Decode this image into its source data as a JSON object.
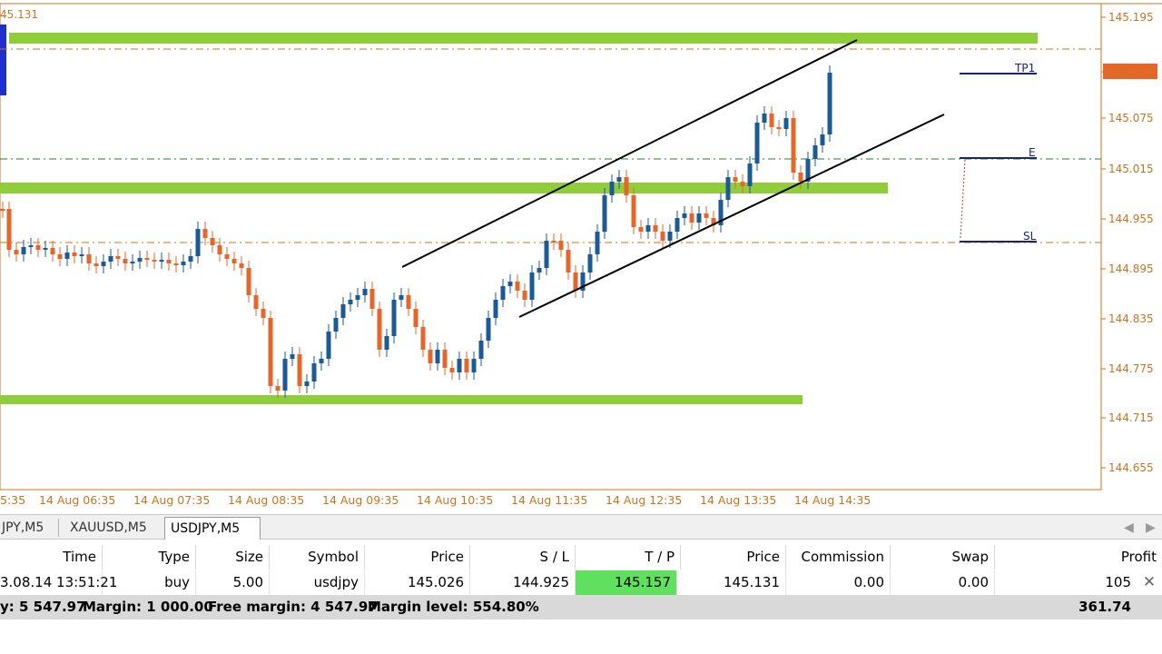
{
  "chart": {
    "current_price_partial": "45.131",
    "price_ticks": [
      "145.195",
      "145.131",
      "145.075",
      "145.015",
      "144.955",
      "144.895",
      "144.835",
      "144.775",
      "144.715",
      "144.655"
    ],
    "time_ticks": [
      "5:35",
      "14 Aug 06:35",
      "14 Aug 07:35",
      "14 Aug 08:35",
      "14 Aug 09:35",
      "14 Aug 10:35",
      "14 Aug 11:35",
      "14 Aug 12:35",
      "14 Aug 13:35",
      "14 Aug 14:35"
    ],
    "line_labels": {
      "tp": "TP1",
      "entry": "E",
      "sl": "SL"
    },
    "colors": {
      "bull": "#1a5a96",
      "bear": "#e8652a",
      "zone": "#8fce3a",
      "axis": "#c8741e",
      "price_badge": "#e8652a",
      "order_line": "#1a237e"
    }
  },
  "tabs": {
    "items": [
      {
        "label": "JPY,M5"
      },
      {
        "label": "XAUUSD,M5"
      },
      {
        "label": "USDJPY,M5"
      }
    ],
    "prev_arrow": "◀",
    "next_arrow": "▶"
  },
  "table": {
    "headers": {
      "time": "Time",
      "type": "Type",
      "size": "Size",
      "symbol": "Symbol",
      "price": "Price",
      "sl": "S / L",
      "tp": "T / P",
      "cur_price": "Price",
      "commission": "Commission",
      "swap": "Swap",
      "profit": "Profit"
    },
    "row": {
      "time": "3.08.14 13:51:21",
      "type": "buy",
      "size": "5.00",
      "symbol": "usdjpy",
      "price": "145.026",
      "sl": "144.925",
      "tp": "145.157",
      "cur_price": "145.131",
      "commission": "0.00",
      "swap": "0.00",
      "profit": "105",
      "close_icon": "✕"
    },
    "summary": {
      "equity": "y: 5 547.97",
      "margin": "Margin: 1 000.00",
      "free_margin": "Free margin: 4 547.97",
      "margin_level": "Margin level: 554.80%",
      "total": "361.74"
    }
  }
}
